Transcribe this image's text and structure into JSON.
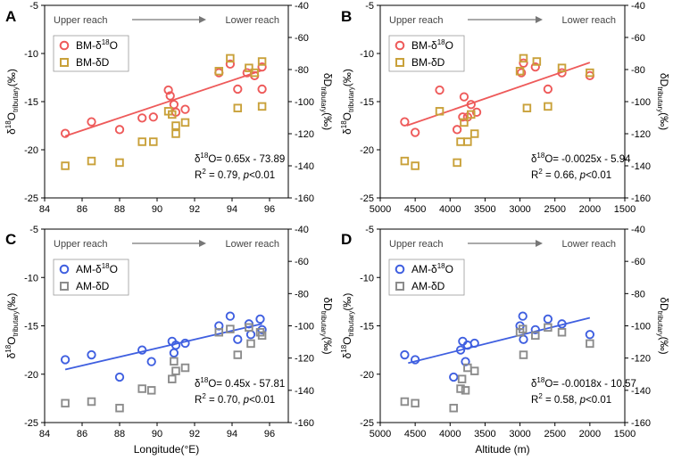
{
  "figure": {
    "panels": [
      "A",
      "B",
      "C",
      "D"
    ]
  },
  "chart_data": [
    {
      "panel": "A",
      "type": "scatter",
      "x_axis": {
        "label": "",
        "lim": [
          84,
          97
        ],
        "ticks": [
          84,
          86,
          88,
          90,
          92,
          94,
          96
        ]
      },
      "y_left": {
        "label_main": "δ",
        "label_sup": "18",
        "label_sub": "tributary",
        "label_unit": "O",
        "label_tail": "(‰)",
        "lim": [
          -25,
          -5
        ],
        "ticks": [
          -25,
          -20,
          -15,
          -10,
          -5
        ]
      },
      "y_right": {
        "label_main": "δD",
        "label_sub": "tributary",
        "label_tail": "(‰)",
        "lim": [
          -160,
          -40
        ],
        "ticks": [
          -160,
          -140,
          -120,
          -100,
          -80,
          -60,
          -40
        ]
      },
      "arrow_left": "Upper reach",
      "arrow_right": "Lower reach",
      "series": [
        {
          "name": "BM-δ18O",
          "legend_main": "BM-δ",
          "legend_sup": "18",
          "legend_tail": "O",
          "marker": "circle",
          "color": "#ee5a5a",
          "axis": "left",
          "x": [
            85.1,
            86.5,
            88.0,
            89.2,
            89.8,
            90.6,
            90.7,
            90.9,
            91.0,
            91.5,
            93.3,
            93.9,
            94.3,
            94.8,
            95.2,
            95.6,
            95.6
          ],
          "y": [
            -18.3,
            -17.1,
            -17.9,
            -16.7,
            -16.6,
            -13.8,
            -14.4,
            -15.3,
            -16.1,
            -15.8,
            -12.0,
            -11.1,
            -13.7,
            -12.0,
            -12.3,
            -13.7,
            -11.4
          ]
        },
        {
          "name": "BM-δD",
          "legend_main": "BM-δD",
          "legend_sup": "",
          "legend_tail": "",
          "marker": "square",
          "color": "#c9a13a",
          "axis": "right",
          "x": [
            85.1,
            86.5,
            88.0,
            89.2,
            89.8,
            90.6,
            90.8,
            91.0,
            91.0,
            91.5,
            93.3,
            93.9,
            94.3,
            94.9,
            95.2,
            95.6,
            95.6
          ],
          "y": [
            -140,
            -137,
            -138,
            -125,
            -125,
            -106,
            -108,
            -115,
            -120,
            -113,
            -81,
            -73,
            -104,
            -79,
            -82,
            -103,
            -75
          ]
        }
      ],
      "fit": {
        "x_range": [
          85.1,
          95.6
        ],
        "slope": 0.65,
        "intercept": -73.89,
        "color": "#ee5a5a"
      },
      "equation": "δ18O= 0.65x - 73.89",
      "r2_line": {
        "r": "R",
        "two": "2",
        "val": " = 0.79, ",
        "p": "p",
        "rest": "<0.01"
      }
    },
    {
      "panel": "B",
      "type": "scatter",
      "x_axis": {
        "label": "",
        "lim": [
          5000,
          1500
        ],
        "ticks": [
          5000,
          4500,
          4000,
          3500,
          3000,
          2500,
          2000,
          1500
        ]
      },
      "y_left": {
        "label_main": "δ",
        "label_sup": "18",
        "label_sub": "tributary",
        "label_unit": "O",
        "label_tail": "(‰)",
        "lim": [
          -25,
          -5
        ],
        "ticks": [
          -25,
          -20,
          -15,
          -10,
          -5
        ]
      },
      "y_right": {
        "label_main": "δD",
        "label_sub": "tributary",
        "label_tail": "(‰)",
        "lim": [
          -160,
          -40
        ],
        "ticks": [
          -160,
          -140,
          -120,
          -100,
          -80,
          -60,
          -40
        ]
      },
      "arrow_left": "Upper reach",
      "arrow_right": "Lower reach",
      "series": [
        {
          "name": "BM-δ18O",
          "legend_main": "BM-δ",
          "legend_sup": "18",
          "legend_tail": "O",
          "marker": "circle",
          "color": "#ee5a5a",
          "axis": "left",
          "x": [
            4650,
            4500,
            4150,
            3900,
            3820,
            3800,
            3750,
            3700,
            3620,
            2980,
            2950,
            2780,
            2600,
            2400,
            2000
          ],
          "y": [
            -17.1,
            -18.2,
            -13.8,
            -17.9,
            -16.6,
            -14.5,
            -16.6,
            -15.3,
            -16.1,
            -12.0,
            -11.0,
            -11.4,
            -13.7,
            -12.0,
            -12.3
          ]
        },
        {
          "name": "BM-δD",
          "legend_main": "BM-δD",
          "legend_sup": "",
          "legend_tail": "",
          "marker": "square",
          "color": "#c9a13a",
          "axis": "right",
          "x": [
            4650,
            4500,
            4150,
            3900,
            3850,
            3800,
            3750,
            3700,
            3650,
            3000,
            2950,
            2900,
            2760,
            2600,
            2400,
            2000
          ],
          "y": [
            -137,
            -140,
            -106,
            -138,
            -125,
            -113,
            -125,
            -108,
            -120,
            -81,
            -73,
            -104,
            -75,
            -103,
            -79,
            -82
          ]
        }
      ],
      "fit": {
        "x_range": [
          4620,
          2000
        ],
        "slope": -0.0025,
        "intercept": -5.94,
        "color": "#ee5a5a"
      },
      "equation": "δ18O= -0.0025x - 5.94",
      "r2_line": {
        "r": "R",
        "two": "2",
        "val": " = 0.66, ",
        "p": "p",
        "rest": "<0.01"
      }
    },
    {
      "panel": "C",
      "type": "scatter",
      "x_axis": {
        "label": "Longitude(°E)",
        "lim": [
          84,
          97
        ],
        "ticks": [
          84,
          86,
          88,
          90,
          92,
          94,
          96
        ]
      },
      "y_left": {
        "label_main": "δ",
        "label_sup": "18",
        "label_sub": "tributary",
        "label_unit": "O",
        "label_tail": "(‰)",
        "lim": [
          -25,
          -5
        ],
        "ticks": [
          -25,
          -20,
          -15,
          -10,
          -5
        ]
      },
      "y_right": {
        "label_main": "δD",
        "label_sub": "tributary",
        "label_tail": "(‰)",
        "lim": [
          -160,
          -40
        ],
        "ticks": [
          -160,
          -140,
          -120,
          -100,
          -80,
          -60,
          -40
        ]
      },
      "arrow_left": "Upper reach",
      "arrow_right": "Lower reach",
      "series": [
        {
          "name": "AM-δ18O",
          "legend_main": "AM-δ",
          "legend_sup": "18",
          "legend_tail": "O",
          "marker": "circle",
          "color": "#3f5fe0",
          "axis": "left",
          "x": [
            85.1,
            86.5,
            88.0,
            89.2,
            89.7,
            90.8,
            90.9,
            91.0,
            91.5,
            93.3,
            93.9,
            94.3,
            94.9,
            95.0,
            95.5,
            95.6
          ],
          "y": [
            -18.5,
            -18.0,
            -20.3,
            -17.5,
            -18.7,
            -16.6,
            -17.8,
            -17.0,
            -16.8,
            -15.0,
            -14.0,
            -16.4,
            -14.8,
            -15.9,
            -14.3,
            -15.4
          ]
        },
        {
          "name": "AM-δD",
          "legend_main": "AM-δD",
          "legend_sup": "",
          "legend_tail": "",
          "marker": "square",
          "color": "#8c8c8c",
          "axis": "right",
          "x": [
            85.1,
            86.5,
            88.0,
            89.2,
            89.7,
            90.8,
            90.9,
            91.0,
            91.5,
            93.3,
            93.9,
            94.3,
            94.9,
            95.0,
            95.5,
            95.6
          ],
          "y": [
            -148,
            -147,
            -151,
            -139,
            -140,
            -133,
            -122,
            -128,
            -126,
            -104,
            -102,
            -118,
            -101,
            -111,
            -104,
            -106
          ]
        }
      ],
      "fit": {
        "x_range": [
          85.1,
          95.6
        ],
        "slope": 0.45,
        "intercept": -57.81,
        "color": "#3f5fe0"
      },
      "equation": "δ18O= 0.45x - 57.81",
      "r2_line": {
        "r": "R",
        "two": "2",
        "val": " = 0.70, ",
        "p": "p",
        "rest": "<0.01"
      }
    },
    {
      "panel": "D",
      "type": "scatter",
      "x_axis": {
        "label": "Altitude (m)",
        "lim": [
          5000,
          1500
        ],
        "ticks": [
          5000,
          4500,
          4000,
          3500,
          3000,
          2500,
          2000,
          1500
        ]
      },
      "y_left": {
        "label_main": "δ",
        "label_sup": "18",
        "label_sub": "tributary",
        "label_unit": "O",
        "label_tail": "(‰)",
        "lim": [
          -25,
          -5
        ],
        "ticks": [
          -25,
          -20,
          -15,
          -10,
          -5
        ]
      },
      "y_right": {
        "label_main": "δD",
        "label_sub": "tributary",
        "label_tail": "(‰)",
        "lim": [
          -160,
          -40
        ],
        "ticks": [
          -160,
          -140,
          -120,
          -100,
          -80,
          -60,
          -40
        ]
      },
      "arrow_left": "Upper reach",
      "arrow_right": "Lower reach",
      "series": [
        {
          "name": "AM-δ18O",
          "legend_main": "AM-δ",
          "legend_sup": "18",
          "legend_tail": "O",
          "marker": "circle",
          "color": "#3f5fe0",
          "axis": "left",
          "x": [
            4650,
            4500,
            3950,
            3850,
            3820,
            3780,
            3750,
            3650,
            3000,
            2960,
            2950,
            2780,
            2600,
            2400,
            2000
          ],
          "y": [
            -18.0,
            -18.5,
            -20.3,
            -17.5,
            -16.6,
            -18.7,
            -17.0,
            -16.8,
            -15.0,
            -14.0,
            -16.4,
            -15.4,
            -14.3,
            -14.8,
            -15.9
          ]
        },
        {
          "name": "AM-δD",
          "legend_main": "AM-δD",
          "legend_sup": "",
          "legend_tail": "",
          "marker": "square",
          "color": "#8c8c8c",
          "axis": "right",
          "x": [
            4650,
            4500,
            3950,
            3850,
            3830,
            3780,
            3750,
            3650,
            3000,
            2960,
            2950,
            2780,
            2600,
            2400,
            2000
          ],
          "y": [
            -147,
            -148,
            -151,
            -139,
            -133,
            -140,
            -126,
            -128,
            -104,
            -102,
            -118,
            -106,
            -101,
            -104,
            -111
          ]
        }
      ],
      "fit": {
        "x_range": [
          4600,
          2000
        ],
        "slope": -0.0018,
        "intercept": -10.57,
        "color": "#3f5fe0"
      },
      "equation": "δ18O= -0.0018x - 10.57",
      "r2_line": {
        "r": "R",
        "two": "2",
        "val": " = 0.58, ",
        "p": "p",
        "rest": "<0.01"
      }
    }
  ]
}
